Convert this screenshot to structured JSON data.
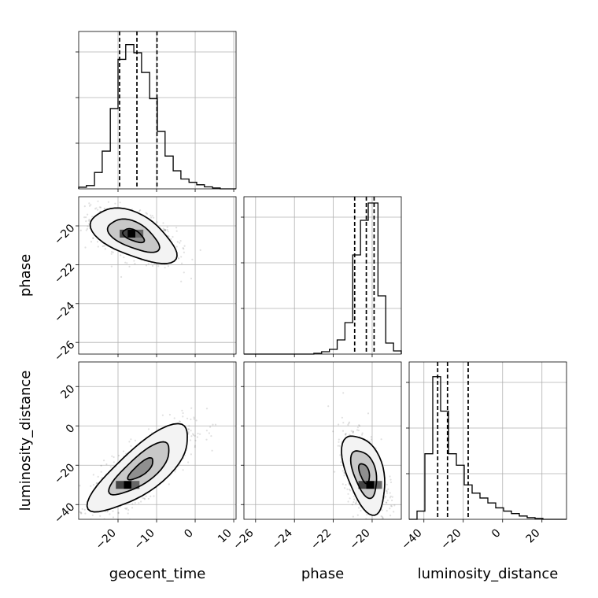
{
  "chart_data": {
    "type": "corner",
    "parameters": [
      "geocent_time",
      "phase",
      "luminosity_distance"
    ],
    "ranges": {
      "geocent_time": [
        -30.2,
        10.6
      ],
      "phase": [
        -26.6,
        -18.5
      ],
      "luminosity_distance": [
        -47.5,
        32.5
      ]
    },
    "ticks": {
      "geocent_time": [
        -20,
        -10,
        0,
        10
      ],
      "phase": [
        -26,
        -24,
        -22,
        -20
      ],
      "luminosity_distance": [
        -40,
        -20,
        0,
        20
      ]
    },
    "diag_y_ticks": 4,
    "grid": true,
    "tick_label_rotation": 45,
    "histograms": [
      {
        "param": "geocent_time",
        "bins": [
          -30.2,
          -28.2,
          -26.1,
          -24.1,
          -22.0,
          -20.0,
          -18.0,
          -15.9,
          -13.9,
          -11.8,
          -9.8,
          -7.8,
          -5.7,
          -3.7,
          -1.6,
          0.4,
          2.4,
          4.5,
          6.5,
          8.6,
          10.6
        ],
        "heights": [
          0.01,
          0.02,
          0.1,
          0.23,
          0.49,
          0.79,
          0.88,
          0.83,
          0.71,
          0.55,
          0.35,
          0.2,
          0.11,
          0.06,
          0.04,
          0.025,
          0.012,
          0.005,
          0.0,
          0.0
        ],
        "quantiles": [
          -19.6,
          -15.1,
          -9.9
        ],
        "hist_max": 0.96
      },
      {
        "param": "phase",
        "bins": [
          -26.6,
          -26.2,
          -25.8,
          -25.4,
          -25.0,
          -24.6,
          -24.2,
          -23.8,
          -23.4,
          -23.0,
          -22.6,
          -22.2,
          -21.8,
          -21.4,
          -21.0,
          -20.6,
          -20.2,
          -19.7,
          -19.3,
          -18.9,
          -18.5
        ],
        "heights": [
          0.0,
          0.0,
          0.0,
          0.0,
          0.0,
          0.0,
          0.0,
          0.0,
          0.0,
          0.005,
          0.015,
          0.03,
          0.09,
          0.2,
          0.63,
          0.85,
          0.96,
          0.37,
          0.07,
          0.02
        ],
        "quantiles": [
          -20.9,
          -20.3,
          -19.9
        ],
        "hist_max": 1.0
      },
      {
        "param": "luminosity_distance",
        "bins": [
          -47.5,
          -43.5,
          -39.5,
          -35.5,
          -31.5,
          -27.5,
          -23.5,
          -19.5,
          -15.5,
          -11.5,
          -7.5,
          -3.5,
          0.5,
          4.5,
          8.5,
          12.5,
          16.5,
          20.5,
          24.5,
          28.5,
          32.5
        ],
        "heights": [
          0.0,
          0.05,
          0.4,
          0.87,
          0.66,
          0.4,
          0.33,
          0.21,
          0.16,
          0.13,
          0.1,
          0.07,
          0.05,
          0.035,
          0.02,
          0.01,
          0.005,
          0.0,
          0.0,
          0.0
        ],
        "quantiles": [
          -33.0,
          -28.0,
          -17.5
        ],
        "hist_max": 0.96
      }
    ],
    "pairs": [
      {
        "x": "geocent_time",
        "y": "phase",
        "center": [
          -16.0,
          -20.5
        ],
        "spread": [
          5.5,
          0.7
        ],
        "correlation": -0.55,
        "point_count": 900,
        "contour_levels": [
          0.5,
          1.2,
          2.0
        ],
        "density_peak": [
          -16.5,
          -20.4
        ]
      },
      {
        "x": "geocent_time",
        "y": "luminosity_distance",
        "center": [
          -14.0,
          -22.0
        ],
        "spread": [
          6.5,
          11.0
        ],
        "correlation": 0.78,
        "point_count": 900,
        "contour_levels": [
          0.5,
          1.2,
          2.0
        ],
        "density_peak": [
          -17.5,
          -30.0
        ]
      },
      {
        "x": "phase",
        "y": "luminosity_distance",
        "center": [
          -20.4,
          -24.0
        ],
        "spread": [
          0.55,
          10.0
        ],
        "correlation": -0.45,
        "point_count": 900,
        "contour_levels": [
          0.5,
          1.2,
          2.0
        ],
        "density_peak": [
          -20.1,
          -30.0
        ]
      }
    ],
    "xlabels": [
      "geocent_time",
      "phase",
      "luminosity_distance"
    ],
    "ylabels": [
      "phase",
      "luminosity_distance"
    ]
  }
}
